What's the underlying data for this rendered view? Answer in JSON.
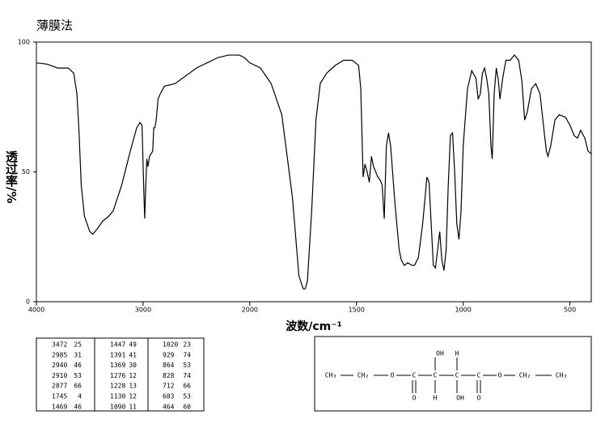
{
  "chart_data": {
    "type": "line",
    "title": "薄膜法",
    "x_label": "波数/cm⁻¹",
    "y_label": "透过率/%",
    "color": "#000000",
    "xlim": [
      4000,
      400
    ],
    "ylim": [
      0,
      100
    ],
    "xticks": [
      4000,
      3000,
      2000,
      1500,
      1000,
      500
    ],
    "yticks": [
      0,
      50,
      100
    ],
    "x": [
      4000,
      3900,
      3800,
      3700,
      3650,
      3620,
      3600,
      3580,
      3550,
      3500,
      3472,
      3430,
      3380,
      3320,
      3280,
      3200,
      3120,
      3060,
      3030,
      3010,
      2995,
      2985,
      2975,
      2965,
      2955,
      2940,
      2925,
      2910,
      2900,
      2890,
      2877,
      2860,
      2840,
      2800,
      2700,
      2600,
      2500,
      2400,
      2300,
      2200,
      2100,
      2050,
      2000,
      1950,
      1900,
      1850,
      1800,
      1770,
      1750,
      1740,
      1730,
      1710,
      1690,
      1670,
      1640,
      1600,
      1560,
      1520,
      1490,
      1480,
      1469,
      1460,
      1450,
      1440,
      1430,
      1420,
      1400,
      1390,
      1380,
      1370,
      1360,
      1350,
      1340,
      1320,
      1300,
      1290,
      1276,
      1260,
      1240,
      1228,
      1210,
      1190,
      1170,
      1160,
      1150,
      1140,
      1130,
      1120,
      1110,
      1100,
      1090,
      1080,
      1070,
      1060,
      1050,
      1040,
      1030,
      1020,
      1010,
      1000,
      980,
      960,
      940,
      930,
      920,
      910,
      900,
      890,
      880,
      870,
      864,
      855,
      845,
      835,
      828,
      815,
      800,
      780,
      760,
      740,
      725,
      712,
      700,
      680,
      660,
      640,
      620,
      610,
      603,
      590,
      570,
      550,
      520,
      500,
      480,
      464,
      450,
      430,
      415,
      400
    ],
    "values": [
      92,
      91.5,
      90,
      90,
      88,
      80,
      65,
      45,
      33,
      27,
      26,
      28,
      31,
      33,
      35,
      45,
      58,
      67,
      69,
      68,
      45,
      32,
      45,
      55,
      52,
      56,
      57,
      58,
      67,
      67,
      70,
      78,
      80,
      83,
      84,
      87,
      90,
      92,
      94,
      95,
      95,
      94,
      92,
      90,
      84,
      72,
      40,
      10,
      5,
      5,
      8,
      35,
      70,
      84,
      88,
      91,
      93,
      93,
      91,
      82,
      48,
      53,
      50,
      46,
      56,
      52,
      48,
      47,
      45,
      32,
      60,
      65,
      60,
      38,
      20,
      16,
      14,
      15,
      14,
      14,
      17,
      30,
      48,
      46,
      30,
      14,
      13,
      20,
      27,
      16,
      12,
      20,
      45,
      64,
      65,
      50,
      30,
      24,
      35,
      60,
      82,
      89,
      86,
      78,
      80,
      88,
      90,
      86,
      80,
      60,
      55,
      80,
      90,
      85,
      78,
      86,
      93,
      93,
      95,
      93,
      85,
      70,
      73,
      82,
      84,
      80,
      65,
      58,
      56,
      60,
      70,
      72,
      71,
      68,
      64,
      63,
      66,
      63,
      58,
      57
    ]
  },
  "table": {
    "rows": [
      [
        3472,
        25,
        1447,
        49,
        1020,
        23
      ],
      [
        2985,
        31,
        1391,
        41,
        929,
        74
      ],
      [
        2940,
        46,
        1369,
        30,
        864,
        53
      ],
      [
        2910,
        53,
        1276,
        12,
        828,
        74
      ],
      [
        2877,
        66,
        1228,
        13,
        712,
        66
      ],
      [
        1745,
        4,
        1130,
        12,
        603,
        53
      ],
      [
        1469,
        46,
        1090,
        11,
        464,
        60
      ]
    ]
  },
  "structure": {
    "labels": [
      "CH₃",
      "CH₂",
      "O",
      "C",
      "C",
      "C",
      "C",
      "O",
      "CH₂",
      "CH₃",
      "OH",
      "H",
      "O",
      "H",
      "OH",
      "O"
    ]
  }
}
